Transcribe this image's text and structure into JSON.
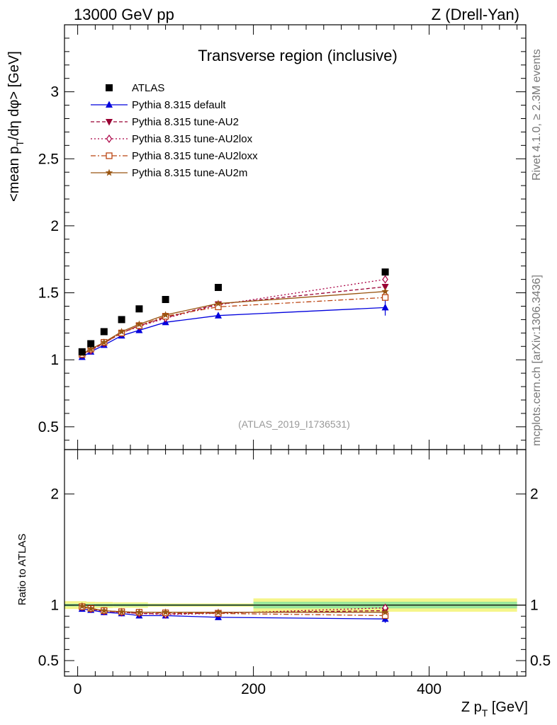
{
  "chart_data": [
    {
      "type": "scatter",
      "title": "Transverse region (inclusive)",
      "header_left": "13000 GeV pp",
      "header_right": "Z (Drell-Yan)",
      "ylabel": "<mean p_T/dη dφ> [GeV]",
      "ylabel_parts": [
        "<mean p",
        "T",
        "/dη dφ> [GeV]"
      ],
      "side_label_top": "Rivet 4.1.0, ≥ 2.3M events",
      "side_label_bottom": "mcplots.cern.ch [arXiv:1306.3436]",
      "reference_label": "(ATLAS_2019_I1736531)",
      "xlim": [
        -15,
        510
      ],
      "ylim": [
        0.33,
        3.5
      ],
      "yticks": [
        0.5,
        1,
        1.5,
        2,
        2.5,
        3
      ],
      "ytick_labels": [
        "0.5",
        "1",
        "1.5",
        "2",
        "2.5",
        "3"
      ],
      "x": [
        5,
        15,
        30,
        50,
        70,
        100,
        160,
        350
      ],
      "series": [
        {
          "name": "ATLAS",
          "color": "#000000",
          "marker": "square",
          "line": "none",
          "values": [
            1.06,
            1.12,
            1.21,
            1.3,
            1.38,
            1.45,
            1.54,
            1.655
          ],
          "errors": [
            0.01,
            0.01,
            0.01,
            0.01,
            0.01,
            0.01,
            0.015,
            0.02
          ]
        },
        {
          "name": "Pythia 8.315 default",
          "color": "#0000dd",
          "marker": "triangle-up",
          "line": "solid",
          "values": [
            1.02,
            1.06,
            1.11,
            1.18,
            1.22,
            1.28,
            1.33,
            1.39
          ],
          "errors": [
            0.005,
            0.005,
            0.006,
            0.006,
            0.008,
            0.01,
            0.015,
            0.06
          ]
        },
        {
          "name": "Pythia 8.315 tune-AU2",
          "color": "#990033",
          "marker": "triangle-down",
          "line": "dashed",
          "values": [
            1.04,
            1.07,
            1.125,
            1.2,
            1.255,
            1.315,
            1.415,
            1.545
          ],
          "errors": [
            0,
            0,
            0,
            0,
            0,
            0,
            0,
            0
          ]
        },
        {
          "name": "Pythia 8.315 tune-AU2lox",
          "color": "#aa0044",
          "marker": "diamond-open",
          "line": "dotted",
          "values": [
            1.04,
            1.07,
            1.125,
            1.2,
            1.25,
            1.31,
            1.41,
            1.6
          ],
          "errors": [
            0,
            0,
            0,
            0,
            0,
            0,
            0,
            0
          ]
        },
        {
          "name": "Pythia 8.315 tune-AU2loxx",
          "color": "#bb4411",
          "marker": "square-open",
          "line": "dashdot",
          "values": [
            1.04,
            1.08,
            1.13,
            1.2,
            1.255,
            1.325,
            1.395,
            1.465
          ],
          "errors": [
            0,
            0,
            0,
            0,
            0,
            0,
            0,
            0.02
          ]
        },
        {
          "name": "Pythia 8.315 tune-AU2m",
          "color": "#995511",
          "marker": "star",
          "line": "solid",
          "values": [
            1.045,
            1.08,
            1.13,
            1.21,
            1.265,
            1.335,
            1.42,
            1.51
          ],
          "errors": [
            0,
            0,
            0,
            0,
            0,
            0,
            0,
            0
          ]
        }
      ]
    },
    {
      "type": "scatter",
      "ylabel": "Ratio to ATLAS",
      "xlabel": "Z p_T [GeV]",
      "xlabel_parts": [
        "Z p",
        "T",
        " [GeV]"
      ],
      "xlim": [
        -15,
        510
      ],
      "xticks": [
        0,
        200,
        400
      ],
      "xtick_labels": [
        "0",
        "200",
        "400"
      ],
      "ylim": [
        0.36,
        2.4
      ],
      "yticks": [
        0.5,
        1,
        2
      ],
      "ytick_labels": [
        "0.5",
        "1",
        "2"
      ],
      "x": [
        5,
        15,
        30,
        50,
        70,
        100,
        160,
        350
      ],
      "band_segments": [
        {
          "x0": -15,
          "x1": 10,
          "inner": 0.012,
          "outer": 0.035
        },
        {
          "x0": 10,
          "x1": 20,
          "inner": 0.012,
          "outer": 0.03
        },
        {
          "x0": 20,
          "x1": 40,
          "inner": 0.012,
          "outer": 0.028
        },
        {
          "x0": 40,
          "x1": 60,
          "inner": 0.012,
          "outer": 0.025
        },
        {
          "x0": 60,
          "x1": 80,
          "inner": 0.012,
          "outer": 0.025
        },
        {
          "x0": 80,
          "x1": 200,
          "inner": 0.008,
          "outer": 0.015
        },
        {
          "x0": 200,
          "x1": 500,
          "inner": 0.03,
          "outer": 0.06
        }
      ],
      "series": [
        {
          "name": "Pythia 8.315 default",
          "values": [
            0.965,
            0.955,
            0.935,
            0.925,
            0.905,
            0.905,
            0.89,
            0.875
          ],
          "errors": [
            0.005,
            0.005,
            0.006,
            0.006,
            0.008,
            0.01,
            0.012,
            0.035
          ]
        },
        {
          "name": "Pythia 8.315 tune-AU2",
          "values": [
            0.985,
            0.965,
            0.945,
            0.935,
            0.925,
            0.92,
            0.93,
            0.95
          ],
          "errors": [
            0,
            0,
            0,
            0,
            0,
            0,
            0,
            0
          ]
        },
        {
          "name": "Pythia 8.315 tune-AU2lox",
          "values": [
            0.985,
            0.965,
            0.945,
            0.935,
            0.925,
            0.915,
            0.925,
            0.975
          ],
          "errors": [
            0,
            0,
            0,
            0,
            0,
            0,
            0,
            0
          ]
        },
        {
          "name": "Pythia 8.315 tune-AU2loxx",
          "values": [
            0.985,
            0.97,
            0.95,
            0.94,
            0.935,
            0.93,
            0.925,
            0.905
          ],
          "errors": [
            0,
            0,
            0,
            0,
            0,
            0,
            0,
            0.015
          ]
        },
        {
          "name": "Pythia 8.315 tune-AU2m",
          "values": [
            0.99,
            0.97,
            0.95,
            0.94,
            0.935,
            0.935,
            0.935,
            0.935
          ],
          "errors": [
            0,
            0,
            0,
            0,
            0,
            0,
            0,
            0
          ]
        }
      ]
    }
  ]
}
